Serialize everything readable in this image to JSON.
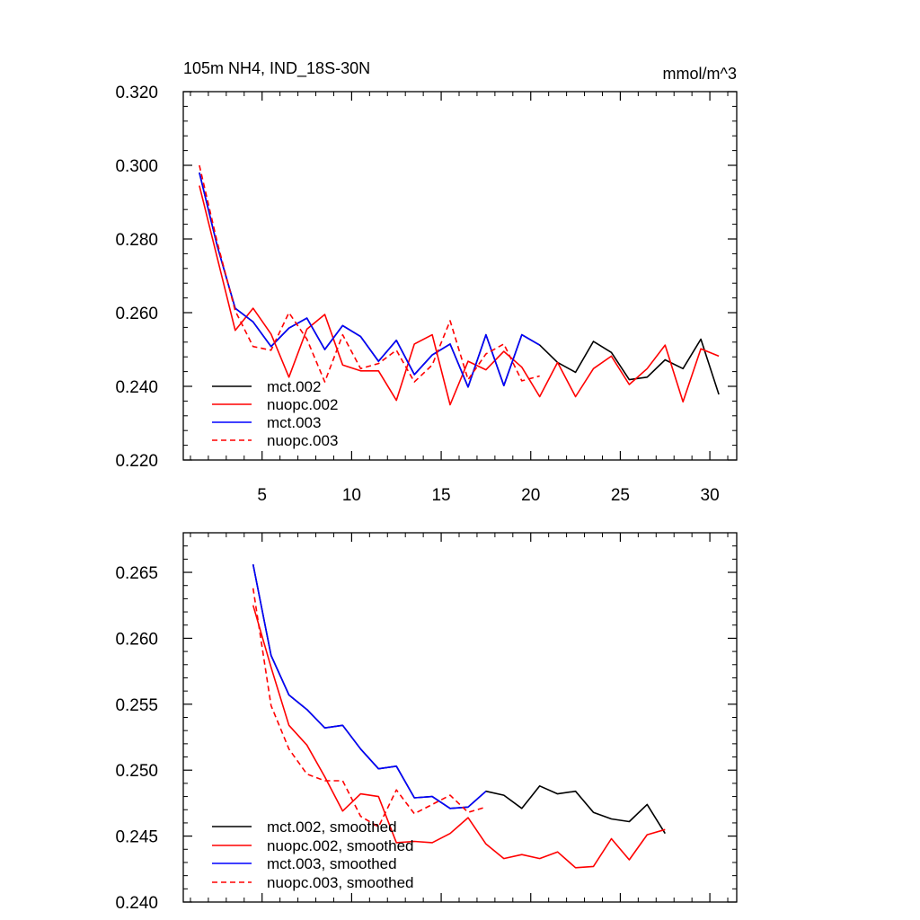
{
  "chart_data": [
    {
      "type": "line",
      "title": "105m NH4, IND_18S-30N",
      "units": "mmol/m^3",
      "xlabel": "",
      "ylabel": "",
      "xlim": [
        0.6,
        31.5
      ],
      "ylim": [
        0.22,
        0.32
      ],
      "xticks": [
        5,
        10,
        15,
        20,
        25,
        30
      ],
      "xtick_labels": [
        "5",
        "10",
        "15",
        "20",
        "25",
        "30"
      ],
      "yticks": [
        0.22,
        0.24,
        0.26,
        0.28,
        0.3,
        0.32
      ],
      "ytick_labels": [
        "0.220",
        "0.240",
        "0.260",
        "0.280",
        "0.300",
        "0.320"
      ],
      "legend_position": "bottom-left",
      "series": [
        {
          "name": "mct.002",
          "color": "#000000",
          "dash": "solid",
          "x": [
            1.5,
            2.5,
            3.5,
            4.5,
            5.5,
            6.5,
            7.5,
            8.5,
            9.5,
            10.5,
            11.5,
            12.5,
            13.5,
            14.5,
            15.5,
            16.5,
            17.5,
            18.5,
            19.5,
            20.5,
            21.5,
            22.5,
            23.5,
            24.5,
            25.5,
            26.5,
            27.5,
            28.5,
            29.5,
            30.5
          ],
          "values": [
            0.298,
            0.278,
            0.2612,
            0.2575,
            0.2508,
            0.2558,
            0.2585,
            0.25,
            0.2565,
            0.2535,
            0.2468,
            0.2525,
            0.2432,
            0.2485,
            0.2515,
            0.2398,
            0.254,
            0.2402,
            0.254,
            0.2512,
            0.2465,
            0.2438,
            0.2522,
            0.2492,
            0.2418,
            0.2425,
            0.2472,
            0.2448,
            0.2528,
            0.2378
          ]
        },
        {
          "name": "nuopc.002",
          "color": "#ff0000",
          "dash": "solid",
          "x": [
            1.5,
            2.5,
            3.5,
            4.5,
            5.5,
            6.5,
            7.5,
            8.5,
            9.5,
            10.5,
            11.5,
            12.5,
            13.5,
            14.5,
            15.5,
            16.5,
            17.5,
            18.5,
            19.5,
            20.5,
            21.5,
            22.5,
            23.5,
            24.5,
            25.5,
            26.5,
            27.5,
            28.5,
            29.5,
            30.5
          ],
          "values": [
            0.2945,
            0.2748,
            0.2552,
            0.2612,
            0.2542,
            0.2425,
            0.2555,
            0.2595,
            0.2458,
            0.2442,
            0.2442,
            0.2362,
            0.2515,
            0.254,
            0.235,
            0.2468,
            0.2445,
            0.2495,
            0.2452,
            0.2372,
            0.2465,
            0.2372,
            0.2448,
            0.2482,
            0.2405,
            0.2448,
            0.2512,
            0.2358,
            0.2502,
            0.2482
          ]
        },
        {
          "name": "mct.003",
          "color": "#0000ff",
          "dash": "solid",
          "x": [
            1.5,
            2.5,
            3.5,
            4.5,
            5.5,
            6.5,
            7.5,
            8.5,
            9.5,
            10.5,
            11.5,
            12.5,
            13.5,
            14.5,
            15.5,
            16.5,
            17.5,
            18.5,
            19.5,
            20.5
          ],
          "values": [
            0.298,
            0.278,
            0.2612,
            0.2575,
            0.2508,
            0.2558,
            0.2585,
            0.25,
            0.2565,
            0.2535,
            0.2468,
            0.2525,
            0.2432,
            0.2485,
            0.2515,
            0.2398,
            0.254,
            0.2402,
            0.254,
            0.2512
          ]
        },
        {
          "name": "nuopc.003",
          "color": "#ff0000",
          "dash": "dashed",
          "x": [
            1.5,
            2.5,
            3.5,
            4.5,
            5.5,
            6.5,
            7.5,
            8.5,
            9.5,
            10.5,
            11.5,
            12.5,
            13.5,
            14.5,
            15.5,
            16.5,
            17.5,
            18.5,
            19.5,
            20.5
          ],
          "values": [
            0.3,
            0.279,
            0.2605,
            0.2508,
            0.2498,
            0.26,
            0.2528,
            0.2412,
            0.254,
            0.2448,
            0.2462,
            0.2498,
            0.2412,
            0.2458,
            0.2578,
            0.2418,
            0.2488,
            0.2515,
            0.2415,
            0.2428
          ]
        }
      ]
    },
    {
      "type": "line",
      "title": "",
      "xlabel": "",
      "ylabel": "",
      "xlim": [
        0.6,
        31.5
      ],
      "ylim": [
        0.24,
        0.268
      ],
      "xticks": [
        5,
        10,
        15,
        20,
        25,
        30
      ],
      "xtick_labels": [],
      "yticks": [
        0.24,
        0.245,
        0.25,
        0.255,
        0.26,
        0.265
      ],
      "ytick_labels": [
        "0.240",
        "0.245",
        "0.250",
        "0.255",
        "0.260",
        "0.265"
      ],
      "legend_position": "bottom-left",
      "series": [
        {
          "name": "mct.002, smoothed",
          "color": "#000000",
          "dash": "solid",
          "x": [
            4.5,
            5.5,
            6.5,
            7.5,
            8.5,
            9.5,
            10.5,
            11.5,
            12.5,
            13.5,
            14.5,
            15.5,
            16.5,
            17.5,
            18.5,
            19.5,
            20.5,
            21.5,
            22.5,
            23.5,
            24.5,
            25.5,
            26.5,
            27.5
          ],
          "values": [
            0.2656,
            0.2587,
            0.2557,
            0.2546,
            0.2532,
            0.2534,
            0.2516,
            0.2501,
            0.2503,
            0.2479,
            0.248,
            0.2471,
            0.2472,
            0.2484,
            0.2481,
            0.2471,
            0.2488,
            0.2482,
            0.2484,
            0.2468,
            0.2463,
            0.2461,
            0.2474,
            0.2452
          ]
        },
        {
          "name": "nuopc.002, smoothed",
          "color": "#ff0000",
          "dash": "solid",
          "x": [
            4.5,
            5.5,
            6.5,
            7.5,
            8.5,
            9.5,
            10.5,
            11.5,
            12.5,
            13.5,
            14.5,
            15.5,
            16.5,
            17.5,
            18.5,
            19.5,
            20.5,
            21.5,
            22.5,
            23.5,
            24.5,
            25.5,
            26.5,
            27.5
          ],
          "values": [
            0.2625,
            0.2578,
            0.2534,
            0.2519,
            0.2495,
            0.2469,
            0.2482,
            0.248,
            0.2445,
            0.2446,
            0.2445,
            0.2452,
            0.2464,
            0.2444,
            0.2433,
            0.2436,
            0.2433,
            0.2438,
            0.2426,
            0.2427,
            0.2448,
            0.2432,
            0.2451,
            0.2455
          ]
        },
        {
          "name": "mct.003, smoothed",
          "color": "#0000ff",
          "dash": "solid",
          "x": [
            4.5,
            5.5,
            6.5,
            7.5,
            8.5,
            9.5,
            10.5,
            11.5,
            12.5,
            13.5,
            14.5,
            15.5,
            16.5,
            17.5
          ],
          "values": [
            0.2656,
            0.2587,
            0.2557,
            0.2546,
            0.2532,
            0.2534,
            0.2516,
            0.2501,
            0.2503,
            0.2479,
            0.248,
            0.2471,
            0.2472,
            0.2484
          ]
        },
        {
          "name": "nuopc.003, smoothed",
          "color": "#ff0000",
          "dash": "dashed",
          "x": [
            4.5,
            5.5,
            6.5,
            7.5,
            8.5,
            9.5,
            10.5,
            11.5,
            12.5,
            13.5,
            14.5,
            15.5,
            16.5,
            17.5
          ],
          "values": [
            0.2638,
            0.2549,
            0.2516,
            0.2497,
            0.2492,
            0.2492,
            0.2465,
            0.2457,
            0.2485,
            0.2467,
            0.2474,
            0.2481,
            0.2468,
            0.2472
          ]
        }
      ]
    }
  ]
}
